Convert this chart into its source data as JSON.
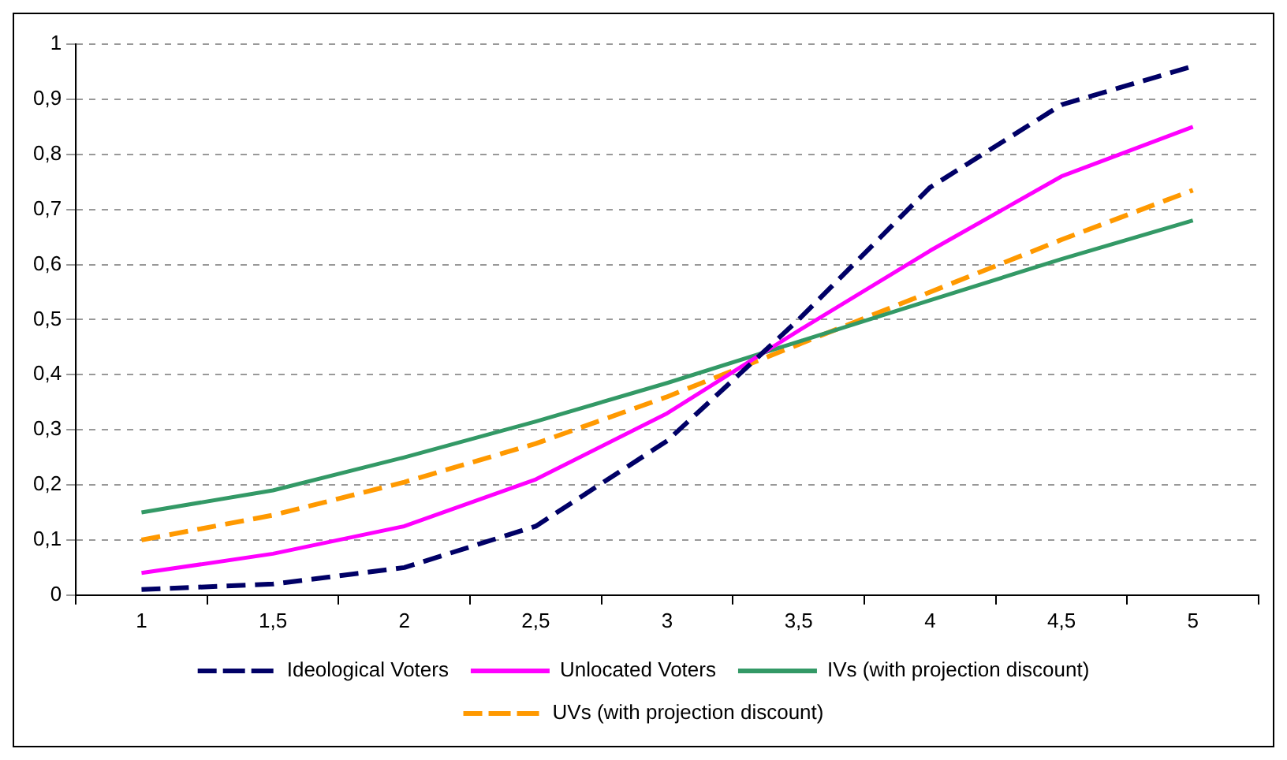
{
  "chart_data": {
    "type": "line",
    "categories": [
      "1",
      "1,5",
      "2",
      "2,5",
      "3",
      "3,5",
      "4",
      "4,5",
      "5"
    ],
    "series": [
      {
        "name": "Ideological Voters",
        "color": "#000066",
        "line_style": "dashed",
        "values": [
          0.01,
          0.02,
          0.05,
          0.125,
          0.28,
          0.5,
          0.74,
          0.89,
          0.96
        ]
      },
      {
        "name": "Unlocated Voters",
        "color": "#ff00ff",
        "line_style": "solid",
        "values": [
          0.04,
          0.075,
          0.125,
          0.21,
          0.33,
          0.48,
          0.625,
          0.76,
          0.85
        ]
      },
      {
        "name": "IVs (with projection discount)",
        "color": "#339966",
        "line_style": "solid",
        "values": [
          0.15,
          0.19,
          0.25,
          0.315,
          0.385,
          0.46,
          0.535,
          0.61,
          0.68
        ]
      },
      {
        "name": "UVs (with projection discount)",
        "color": "#ff9900",
        "line_style": "dashed",
        "values": [
          0.1,
          0.145,
          0.205,
          0.275,
          0.36,
          0.455,
          0.55,
          0.645,
          0.735
        ]
      }
    ],
    "ylim": [
      0,
      1
    ],
    "yticks": [
      0,
      {
        "value": 0.1,
        "label": "0,1"
      },
      {
        "value": 0.2,
        "label": "0,2"
      },
      {
        "value": 0.3,
        "label": "0,3"
      },
      {
        "value": 0.4,
        "label": "0,4"
      },
      {
        "value": 0.5,
        "label": "0,5"
      },
      {
        "value": 0.6,
        "label": "0,6"
      },
      {
        "value": 0.7,
        "label": "0,7"
      },
      {
        "value": 0.8,
        "label": "0,8"
      },
      {
        "value": 0.9,
        "label": "0,9"
      },
      1
    ],
    "grid": "y",
    "legend": "bottom",
    "marker": "none"
  }
}
